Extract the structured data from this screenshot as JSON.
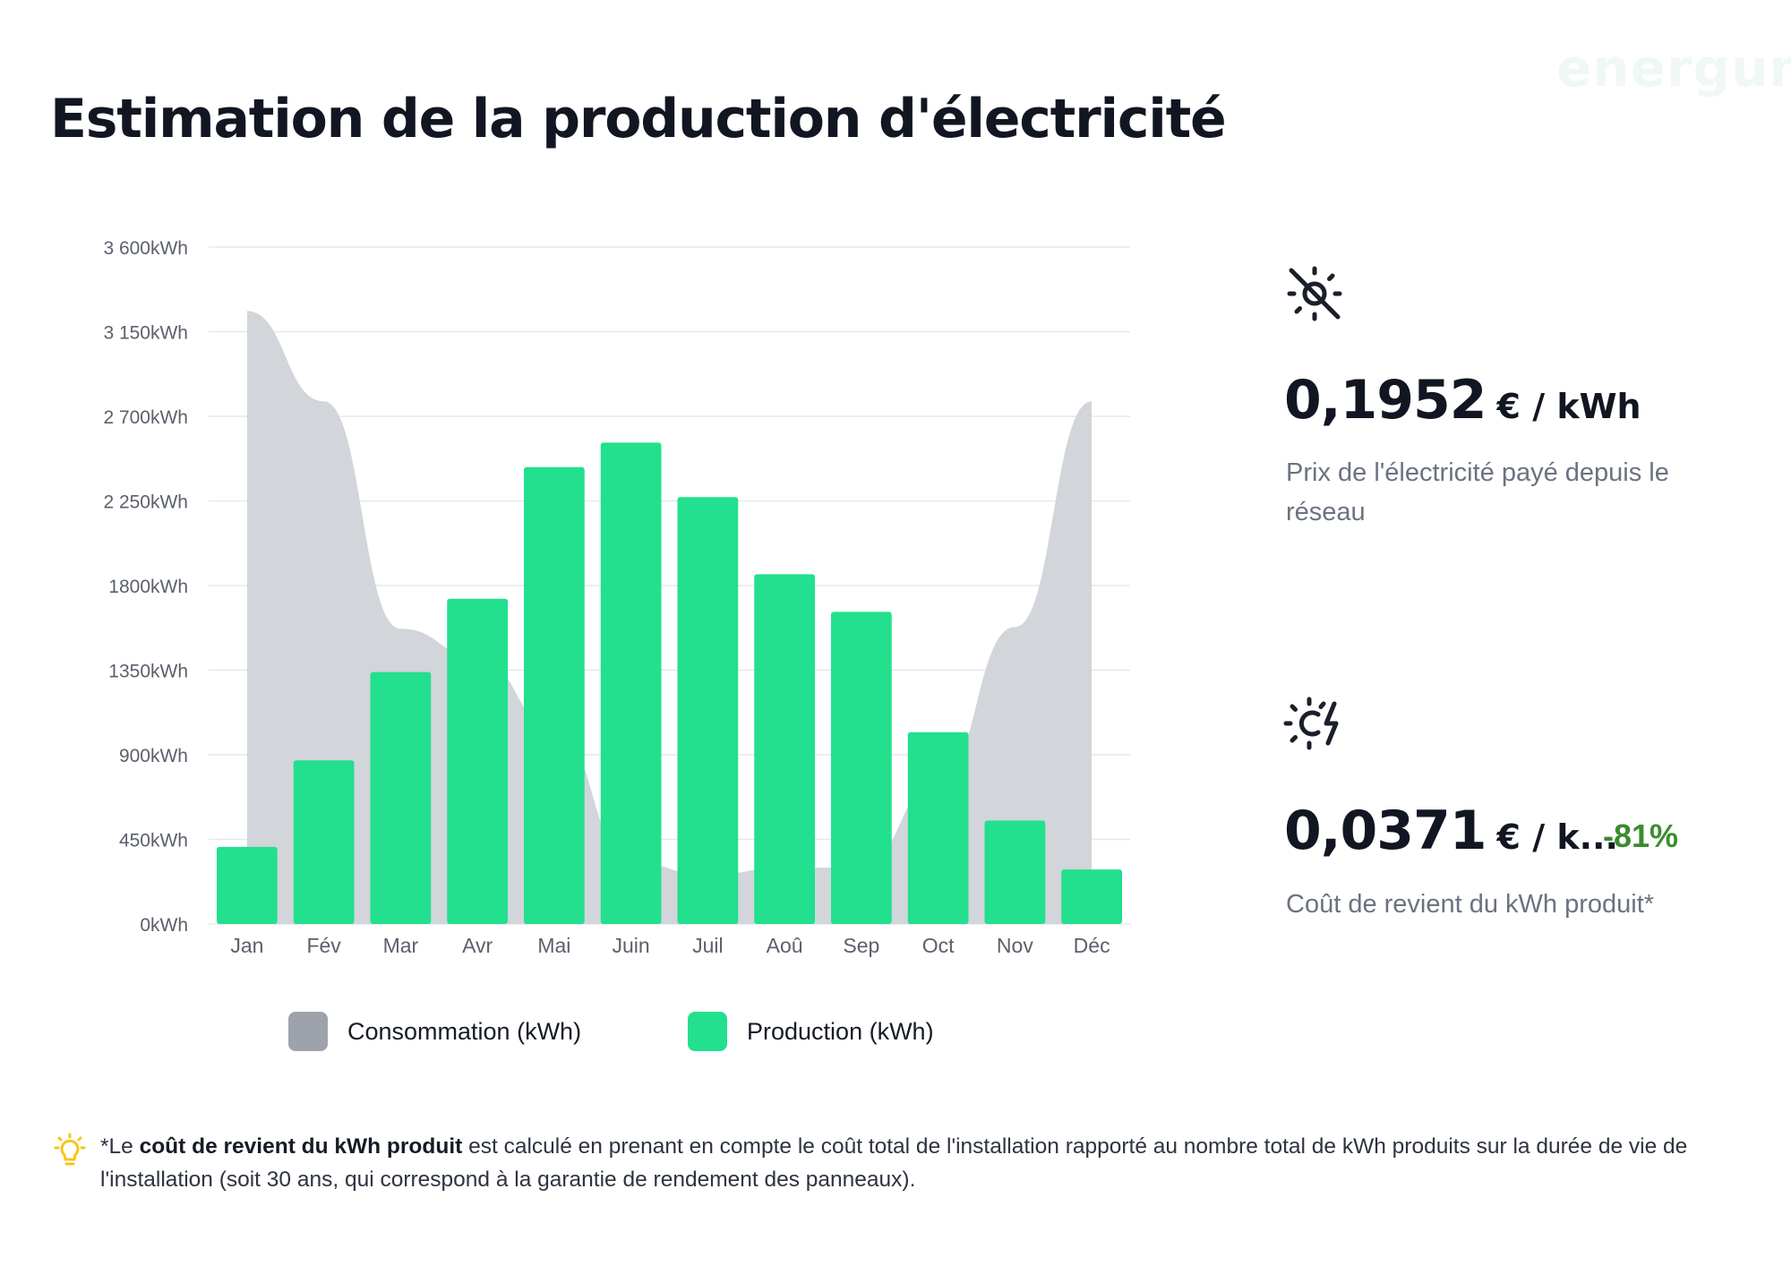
{
  "brand": "energum",
  "title": "Estimation de la production d'électricité",
  "chart_data": {
    "type": "bar",
    "categories": [
      "Jan",
      "Fév",
      "Mar",
      "Avr",
      "Mai",
      "Juin",
      "Juil",
      "Aoû",
      "Sep",
      "Oct",
      "Nov",
      "Déc"
    ],
    "series": [
      {
        "name": "Production (kWh)",
        "type": "bar",
        "color": "#22e08e",
        "values": [
          410,
          870,
          1340,
          1730,
          2430,
          2560,
          2270,
          1860,
          1660,
          1020,
          550,
          290
        ]
      },
      {
        "name": "Consommation (kWh)",
        "type": "area",
        "color": "#d2d5da",
        "values": [
          3260,
          2780,
          1570,
          1420,
          1040,
          330,
          260,
          300,
          300,
          760,
          1580,
          2780
        ]
      }
    ],
    "y_ticks": [
      "3 600kWh",
      "3 150kWh",
      "2 700kWh",
      "2 250kWh",
      "1800kWh",
      "1350kWh",
      "900kWh",
      "450kWh",
      "0kWh"
    ],
    "ylim": [
      0,
      3600
    ],
    "grid": true,
    "legend_position": "bottom"
  },
  "legend": {
    "consumption": {
      "label": "Consommation (kWh)",
      "color": "#9ea2ab"
    },
    "production": {
      "label": "Production (kWh)",
      "color": "#22e08e"
    }
  },
  "metrics": {
    "grid_price": {
      "icon": "sun-off-icon",
      "value": "0,1952",
      "unit": "€ / kWh",
      "description": "Prix de l'électricité payé depuis le réseau"
    },
    "production_cost": {
      "icon": "solar-bolt-icon",
      "value": "0,0371",
      "unit": "€ / k...",
      "delta": "-81%",
      "delta_color": "#3a8c2e",
      "description": "Coût de revient du kWh produit*"
    }
  },
  "footnote": {
    "icon": "lightbulb-icon",
    "prefix": "*Le ",
    "bold": "coût de revient du kWh produit",
    "rest": " est calculé en prenant en compte le coût total de l'installation rapporté au nombre total de kWh produits sur la durée de vie de l'installation (soit 30 ans, qui correspond à la garantie de rendement des panneaux)."
  }
}
